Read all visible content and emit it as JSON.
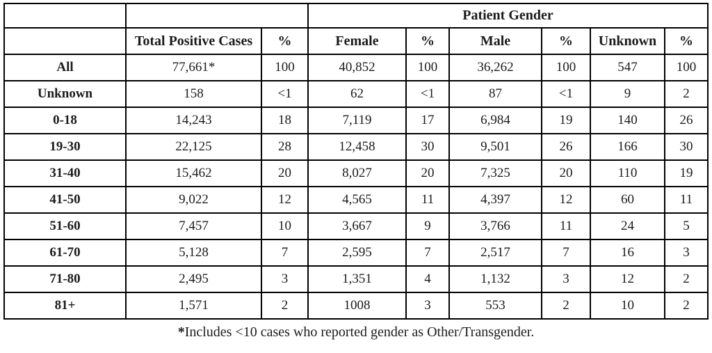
{
  "document": {
    "background_color": "#ffffff",
    "text_color": "#1b1b1b",
    "border_color": "#000000"
  },
  "table": {
    "span_header": "Patient Gender",
    "columns": [
      "",
      "Total Positive Cases",
      "%",
      "Female",
      "%",
      "Male",
      "%",
      "Unknown",
      "%"
    ],
    "rows": [
      [
        "All",
        "77,661*",
        "100",
        "40,852",
        "100",
        "36,262",
        "100",
        "547",
        "100"
      ],
      [
        "Unknown",
        "158",
        "<1",
        "62",
        "<1",
        "87",
        "<1",
        "9",
        "2"
      ],
      [
        "0-18",
        "14,243",
        "18",
        "7,119",
        "17",
        "6,984",
        "19",
        "140",
        "26"
      ],
      [
        "19-30",
        "22,125",
        "28",
        "12,458",
        "30",
        "9,501",
        "26",
        "166",
        "30"
      ],
      [
        "31-40",
        "15,462",
        "20",
        "8,027",
        "20",
        "7,325",
        "20",
        "110",
        "19"
      ],
      [
        "41-50",
        "9,022",
        "12",
        "4,565",
        "11",
        "4,397",
        "12",
        "60",
        "11"
      ],
      [
        "51-60",
        "7,457",
        "10",
        "3,667",
        "9",
        "3,766",
        "11",
        "24",
        "5"
      ],
      [
        "61-70",
        "5,128",
        "7",
        "2,595",
        "7",
        "2,517",
        "7",
        "16",
        "3"
      ],
      [
        "71-80",
        "2,495",
        "3",
        "1,351",
        "4",
        "1,132",
        "3",
        "12",
        "2"
      ],
      [
        "81+",
        "1,571",
        "2",
        "1008",
        "3",
        "553",
        "2",
        "10",
        "2"
      ]
    ],
    "footnote_marker": "*",
    "footnote_text": "Includes <10 cases who reported gender as Other/Transgender."
  }
}
